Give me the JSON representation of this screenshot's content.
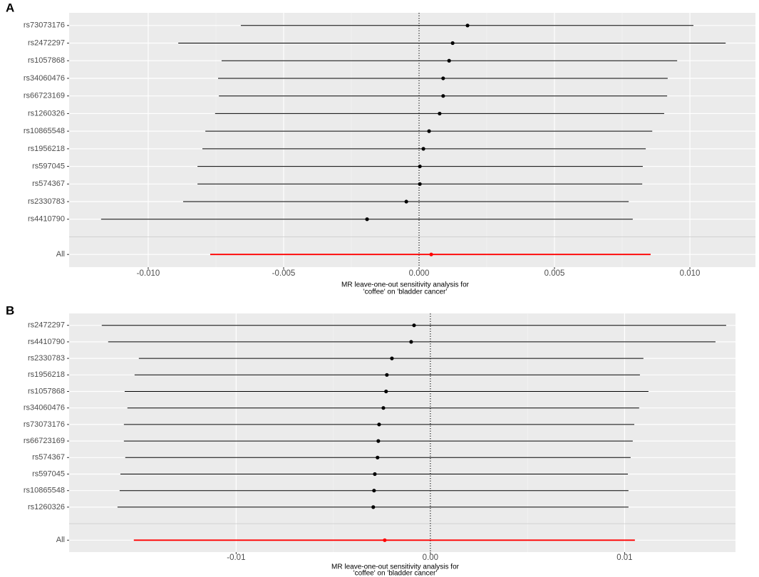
{
  "chart_data": [
    {
      "type": "forest",
      "panel": "A",
      "xlabel": [
        "MR leave-one-out sensitivity analysis for",
        "'coffee' on 'bladder cancer'"
      ],
      "categories": [
        "rs73073176",
        "rs2472297",
        "rs1057868",
        "rs34060476",
        "rs66723169",
        "rs1260326",
        "rs10865548",
        "rs1956218",
        "rs597045",
        "rs574367",
        "rs2330783",
        "rs4410790",
        "All"
      ],
      "values": [
        0.00179,
        0.00124,
        0.00111,
        0.00089,
        0.00089,
        0.00076,
        0.00037,
        0.00016,
        3e-05,
        3e-05,
        -0.00047,
        -0.00192,
        0.00045
      ],
      "lower": [
        -0.00658,
        -0.00889,
        -0.00729,
        -0.00742,
        -0.00739,
        -0.00753,
        -0.00789,
        -0.008,
        -0.00818,
        -0.00818,
        -0.00871,
        -0.01174,
        -0.00771
      ],
      "upper": [
        0.01013,
        0.01132,
        0.00953,
        0.00918,
        0.00916,
        0.00905,
        0.00861,
        0.00837,
        0.00826,
        0.00824,
        0.00774,
        0.00789,
        0.00855
      ],
      "color": "#000000",
      "summary_color": "#ff0000",
      "vline": 0,
      "xlim": [
        -0.01292,
        0.01242
      ],
      "xticks": [
        {
          "value": -0.01,
          "label": "-0.010"
        },
        -0.005,
        {
          "value": 0,
          "label": "0.000"
        },
        0.005,
        {
          "value": 0.01,
          "label": "0.010"
        }
      ],
      "grid": true
    },
    {
      "type": "forest",
      "panel": "B",
      "xlabel": [
        "MR leave-one-out sensitivity analysis for",
        "'coffee' on 'bladder cancer'"
      ],
      "categories": [
        "rs2472297",
        "rs4410790",
        "rs2330783",
        "rs1956218",
        "rs1057868",
        "rs34060476",
        "rs73073176",
        "rs66723169",
        "rs574367",
        "rs597045",
        "rs10865548",
        "rs1260326",
        "All"
      ],
      "values": [
        -0.00084,
        -0.00099,
        -0.00198,
        -0.00224,
        -0.00228,
        -0.00242,
        -0.00264,
        -0.00268,
        -0.00272,
        -0.00286,
        -0.0029,
        -0.00294,
        -0.00235
      ],
      "lower": [
        -0.01692,
        -0.01659,
        -0.01501,
        -0.01523,
        -0.01574,
        -0.0156,
        -0.01578,
        -0.01578,
        -0.01571,
        -0.01596,
        -0.016,
        -0.01611,
        -0.01527
      ],
      "upper": [
        0.01523,
        0.01468,
        0.01097,
        0.01079,
        0.01123,
        0.01075,
        0.0105,
        0.01042,
        0.01031,
        0.01017,
        0.0102,
        0.0102,
        0.01053
      ],
      "color": "#000000",
      "summary_color": "#ff0000",
      "vline": 0,
      "xlim": [
        -0.0186,
        0.01571
      ],
      "xticks": [
        -0.01,
        {
          "value": 0,
          "label": "0.00"
        },
        0.01
      ],
      "grid": true
    }
  ]
}
